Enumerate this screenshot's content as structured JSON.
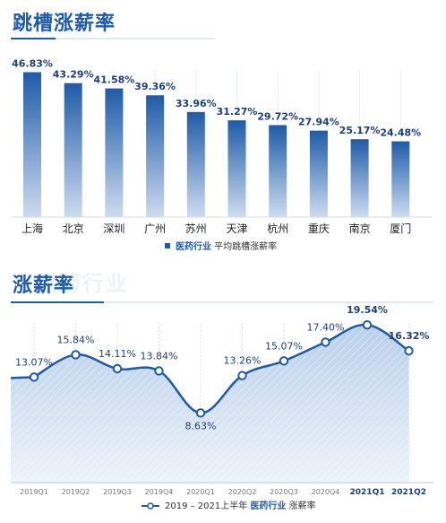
{
  "sections": {
    "title1": "跳槽涨薪率",
    "title2": "涨薪率",
    "watermark2": "医药行业"
  },
  "colors": {
    "primary": "#1f5ba8",
    "light": "#c9d9ee"
  },
  "chart_data": [
    {
      "type": "bar",
      "categories": [
        "上海",
        "北京",
        "深圳",
        "广州",
        "苏州",
        "天津",
        "杭州",
        "重庆",
        "南京",
        "厦门"
      ],
      "values": [
        46.83,
        43.29,
        41.58,
        39.36,
        33.96,
        31.27,
        29.72,
        27.94,
        25.17,
        24.48
      ],
      "value_labels": [
        "46.83%",
        "43.29%",
        "41.58%",
        "39.36%",
        "33.96%",
        "31.27%",
        "29.72%",
        "27.94%",
        "25.17%",
        "24.48%"
      ],
      "ylim": [
        0,
        50
      ],
      "legend": {
        "strong": "医药行业",
        "text": "平均跳槽涨薪率"
      }
    },
    {
      "type": "area",
      "categories": [
        "2019Q1",
        "2019Q2",
        "2019Q3",
        "2019Q4",
        "2020Q1",
        "2020Q2",
        "2020Q3",
        "2020Q4",
        "2021Q1",
        "2021Q2"
      ],
      "values": [
        13.07,
        15.84,
        14.11,
        13.84,
        8.63,
        13.26,
        15.07,
        17.4,
        19.54,
        16.32
      ],
      "value_labels": [
        "13.07%",
        "15.84%",
        "14.11%",
        "13.84%",
        "8.63%",
        "13.26%",
        "15.07%",
        "17.40%",
        "19.54%",
        "16.32%"
      ],
      "bold_categories": [
        "2021Q1",
        "2021Q2"
      ],
      "ylim": [
        0,
        22
      ],
      "legend": {
        "prefix": "2019 – 2021上半年",
        "strong": "医药行业",
        "text": "涨薪率"
      }
    }
  ]
}
